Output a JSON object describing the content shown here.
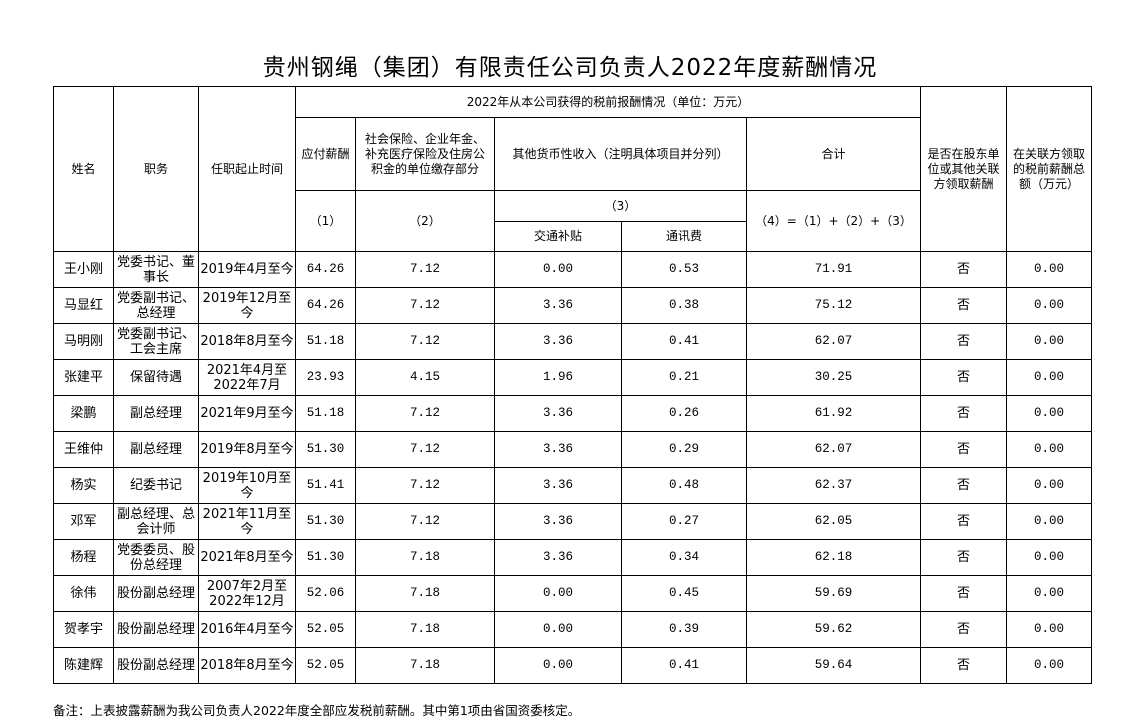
{
  "title": "贵州钢绳（集团）有限责任公司负责人2022年度薪酬情况",
  "headers": {
    "name": "姓名",
    "position": "职务",
    "term": "任职起止时间",
    "group": "2022年从本公司获得的税前报酬情况（单位：万元）",
    "salary": "应付薪酬",
    "social": "社会保险、企业年金、补充医疗保险及住房公积金的单位缴存部分",
    "other": "其他货币性收入（注明具体项目并分列）",
    "total": "合计",
    "col1": "（1）",
    "col2": "（2）",
    "col3": "（3）",
    "transport": "交通补贴",
    "telecom": "通讯费",
    "col4": "（4）=（1）+（2）+（3）",
    "related_flag": "是否在股东单位或其他关联方领取薪酬",
    "related_amount": "在关联方领取的税前薪酬总额（万元）"
  },
  "rows": [
    {
      "name": "王小刚",
      "position": "党委书记、董事长",
      "term": "2019年4月至今",
      "salary": "64.26",
      "social": "7.12",
      "transport": "0.00",
      "telecom": "0.53",
      "total": "71.91",
      "related_flag": "否",
      "related_amount": "0.00"
    },
    {
      "name": "马显红",
      "position": "党委副书记、总经理",
      "term": "2019年12月至今",
      "salary": "64.26",
      "social": "7.12",
      "transport": "3.36",
      "telecom": "0.38",
      "total": "75.12",
      "related_flag": "否",
      "related_amount": "0.00"
    },
    {
      "name": "马明刚",
      "position": "党委副书记、工会主席",
      "term": "2018年8月至今",
      "salary": "51.18",
      "social": "7.12",
      "transport": "3.36",
      "telecom": "0.41",
      "total": "62.07",
      "related_flag": "否",
      "related_amount": "0.00"
    },
    {
      "name": "张建平",
      "position": "保留待遇",
      "term": "2021年4月至2022年7月",
      "salary": "23.93",
      "social": "4.15",
      "transport": "1.96",
      "telecom": "0.21",
      "total": "30.25",
      "related_flag": "否",
      "related_amount": "0.00"
    },
    {
      "name": "梁鹏",
      "position": "副总经理",
      "term": "2021年9月至今",
      "salary": "51.18",
      "social": "7.12",
      "transport": "3.36",
      "telecom": "0.26",
      "total": "61.92",
      "related_flag": "否",
      "related_amount": "0.00"
    },
    {
      "name": "王维仲",
      "position": "副总经理",
      "term": "2019年8月至今",
      "salary": "51.30",
      "social": "7.12",
      "transport": "3.36",
      "telecom": "0.29",
      "total": "62.07",
      "related_flag": "否",
      "related_amount": "0.00"
    },
    {
      "name": "杨实",
      "position": "纪委书记",
      "term": "2019年10月至今",
      "salary": "51.41",
      "social": "7.12",
      "transport": "3.36",
      "telecom": "0.48",
      "total": "62.37",
      "related_flag": "否",
      "related_amount": "0.00"
    },
    {
      "name": "邓军",
      "position": "副总经理、总会计师",
      "term": "2021年11月至今",
      "salary": "51.30",
      "social": "7.12",
      "transport": "3.36",
      "telecom": "0.27",
      "total": "62.05",
      "related_flag": "否",
      "related_amount": "0.00"
    },
    {
      "name": "杨程",
      "position": "党委委员、股份总经理",
      "term": "2021年8月至今",
      "salary": "51.30",
      "social": "7.18",
      "transport": "3.36",
      "telecom": "0.34",
      "total": "62.18",
      "related_flag": "否",
      "related_amount": "0.00"
    },
    {
      "name": "徐伟",
      "position": "股份副总经理",
      "term": "2007年2月至2022年12月",
      "salary": "52.06",
      "social": "7.18",
      "transport": "0.00",
      "telecom": "0.45",
      "total": "59.69",
      "related_flag": "否",
      "related_amount": "0.00"
    },
    {
      "name": "贺孝宇",
      "position": "股份副总经理",
      "term": "2016年4月至今",
      "salary": "52.05",
      "social": "7.18",
      "transport": "0.00",
      "telecom": "0.39",
      "total": "59.62",
      "related_flag": "否",
      "related_amount": "0.00"
    },
    {
      "name": "陈建辉",
      "position": "股份副总经理",
      "term": "2018年8月至今",
      "salary": "52.05",
      "social": "7.18",
      "transport": "0.00",
      "telecom": "0.41",
      "total": "59.64",
      "related_flag": "否",
      "related_amount": "0.00"
    }
  ],
  "note": "备注：上表披露薪酬为我公司负责人2022年度全部应发税前薪酬。其中第1项由省国资委核定。"
}
